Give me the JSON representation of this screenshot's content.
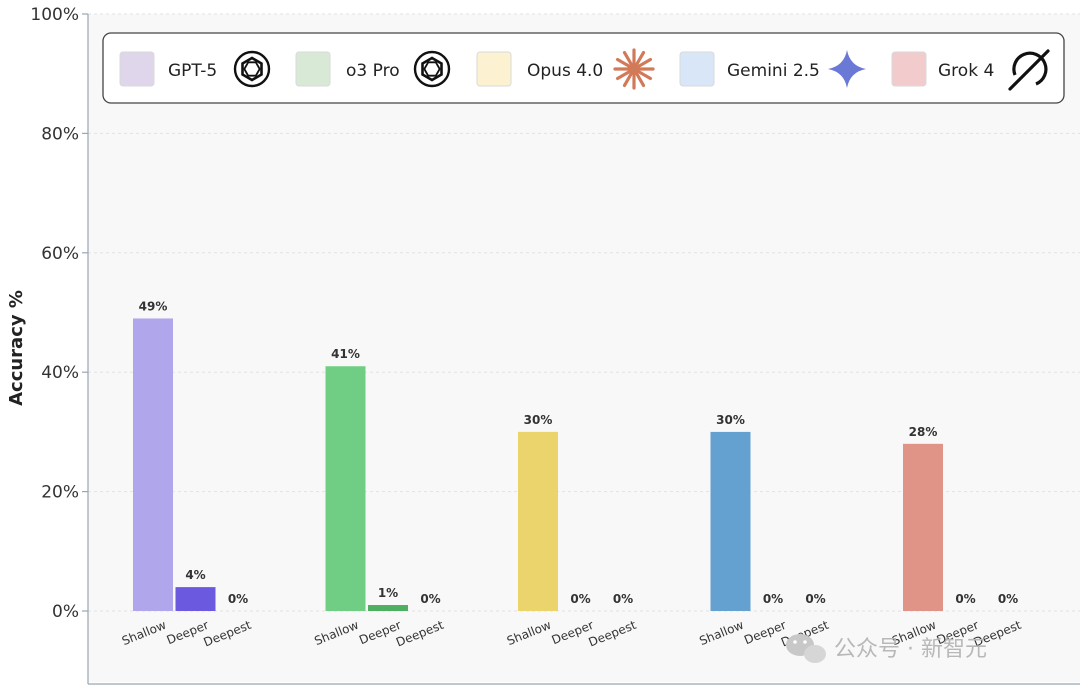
{
  "chart_data": {
    "type": "bar",
    "ylabel": "Accuracy %",
    "ylim": [
      0,
      100
    ],
    "yticks": [
      "0%",
      "20%",
      "40%",
      "60%",
      "80%",
      "100%"
    ],
    "grid": true,
    "legend_position": "top",
    "categories": [
      "Shallow",
      "Deeper",
      "Deepest"
    ],
    "series": [
      {
        "name": "GPT-5",
        "values": [
          49,
          4,
          0
        ],
        "labels": [
          "49%",
          "4%",
          "0%"
        ],
        "colors": [
          "#b0a6ec",
          "#6b5ae0",
          "#5a4ad0"
        ],
        "legend_color": "#e0d6ec",
        "icon": "openai-icon"
      },
      {
        "name": "o3 Pro",
        "values": [
          41,
          1,
          0
        ],
        "labels": [
          "41%",
          "1%",
          "0%"
        ],
        "colors": [
          "#70ce84",
          "#4eae62",
          "#3e9e52"
        ],
        "legend_color": "#d8ead6",
        "icon": "openai-icon"
      },
      {
        "name": "Opus 4.0",
        "values": [
          30,
          0,
          0
        ],
        "labels": [
          "30%",
          "0%",
          "0%"
        ],
        "colors": [
          "#ecd46c",
          "#d8b84c",
          "#c8a83c"
        ],
        "legend_color": "#fcf2d2",
        "icon": "anthropic-icon"
      },
      {
        "name": "Gemini 2.5",
        "values": [
          30,
          0,
          0
        ],
        "labels": [
          "30%",
          "0%",
          "0%"
        ],
        "colors": [
          "#64a0d0",
          "#4a86b8",
          "#3a76a8"
        ],
        "legend_color": "#d8e6f8",
        "icon": "gemini-icon"
      },
      {
        "name": "Grok 4",
        "values": [
          28,
          0,
          0
        ],
        "labels": [
          "28%",
          "0%",
          "0%"
        ],
        "colors": [
          "#e09488",
          "#c87468",
          "#b86458"
        ],
        "legend_color": "#f2cccc",
        "icon": "grok-icon"
      }
    ]
  },
  "watermark": {
    "text": "公众号 · 新智元",
    "icon": "wechat-icon"
  }
}
